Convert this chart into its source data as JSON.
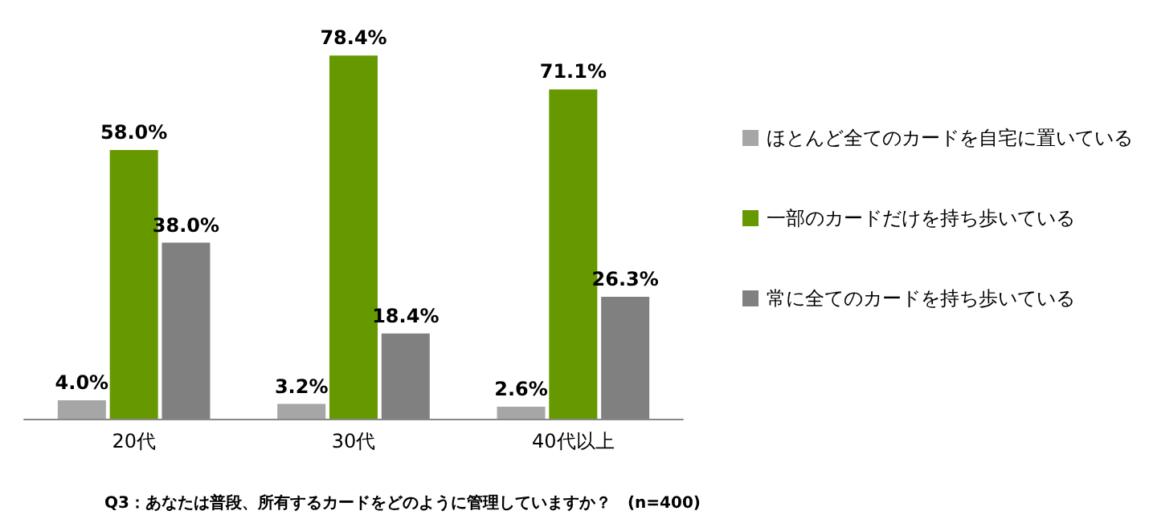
{
  "chart_data": {
    "type": "bar",
    "title": "Q3：あなたは普段、所有するカードをどのように管理していますか？　(n=400)",
    "categories": [
      "20代",
      "30代",
      "40代以上"
    ],
    "series": [
      {
        "name": "ほとんど全てのカードを自宅に置いている",
        "color": "#a6a6a6",
        "values": [
          4.0,
          3.2,
          2.6
        ],
        "value_labels": [
          "4.0%",
          "3.2%",
          "2.6%"
        ]
      },
      {
        "name": "一部のカードだけを持ち歩いている",
        "color": "#669900",
        "values": [
          58.0,
          78.4,
          71.1
        ],
        "value_labels": [
          "58.0%",
          "78.4%",
          "71.1%"
        ]
      },
      {
        "name": "常に全てのカードを持ち歩いている",
        "color": "#808080",
        "values": [
          38.0,
          18.4,
          26.3
        ],
        "value_labels": [
          "38.0%",
          "18.4%",
          "26.3%"
        ]
      }
    ],
    "legend": "right",
    "grid": false
  }
}
